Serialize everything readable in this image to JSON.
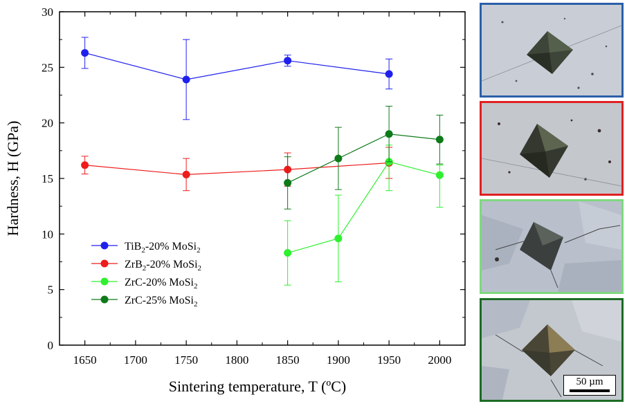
{
  "chart_data": {
    "type": "line",
    "xlabel": "Sintering temperature, T (ºC)",
    "ylabel": "Hardness, H (GPa)",
    "xlim": [
      1625,
      2025
    ],
    "ylim": [
      0,
      30
    ],
    "xticks": [
      1650,
      1700,
      1750,
      1800,
      1850,
      1900,
      1950,
      2000
    ],
    "yticks": [
      0,
      5,
      10,
      15,
      20,
      25,
      30
    ],
    "grid": false,
    "legend_position": "bottom-left",
    "series": [
      {
        "name_main": "TiB",
        "name_sub": "2",
        "name_mid": "-20% MoSi",
        "name_sub2": "2",
        "color": "#2020ee",
        "points": [
          {
            "x": 1650,
            "y": 26.3,
            "err_low": 1.4,
            "err_high": 1.4
          },
          {
            "x": 1750,
            "y": 23.9,
            "err_low": 3.6,
            "err_high": 3.6
          },
          {
            "x": 1850,
            "y": 25.6,
            "err_low": 0.5,
            "err_high": 0.5
          },
          {
            "x": 1950,
            "y": 24.4,
            "err_low": 1.35,
            "err_high": 1.35
          }
        ]
      },
      {
        "name_main": "ZrB",
        "name_sub": "2",
        "name_mid": "-20% MoSi",
        "name_sub2": "2",
        "color": "#ee1c1c",
        "points": [
          {
            "x": 1650,
            "y": 16.2,
            "err_low": 0.8,
            "err_high": 0.8
          },
          {
            "x": 1750,
            "y": 15.35,
            "err_low": 1.45,
            "err_high": 1.45
          },
          {
            "x": 1850,
            "y": 15.8,
            "err_low": 1.5,
            "err_high": 1.5
          },
          {
            "x": 1950,
            "y": 16.4,
            "err_low": 1.4,
            "err_high": 1.4
          }
        ]
      },
      {
        "name_main": "ZrC-20% MoSi",
        "name_sub": "2",
        "name_mid": "",
        "name_sub2": "",
        "color": "#2ef02e",
        "points": [
          {
            "x": 1850,
            "y": 8.3,
            "err_low": 2.9,
            "err_high": 2.9
          },
          {
            "x": 1900,
            "y": 9.6,
            "err_low": 3.9,
            "err_high": 3.9
          },
          {
            "x": 1950,
            "y": 16.5,
            "err_low": 2.6,
            "err_high": 1.5
          },
          {
            "x": 2000,
            "y": 15.3,
            "err_low": 2.9,
            "err_high": 0.9
          }
        ]
      },
      {
        "name_main": "ZrC-25% MoSi",
        "name_sub": "2",
        "name_mid": "",
        "name_sub2": "",
        "color": "#0e7a1a",
        "points": [
          {
            "x": 1850,
            "y": 14.6,
            "err_low": 2.35,
            "err_high": 2.35
          },
          {
            "x": 1900,
            "y": 16.8,
            "err_low": 2.8,
            "err_high": 2.8
          },
          {
            "x": 1950,
            "y": 19.0,
            "err_low": 2.5,
            "err_high": 2.5
          },
          {
            "x": 2000,
            "y": 18.5,
            "err_low": 2.2,
            "err_high": 2.2
          }
        ]
      }
    ]
  },
  "micrographs": [
    {
      "border_color": "#2b5fa8",
      "scale_label": ""
    },
    {
      "border_color": "#e02020",
      "scale_label": ""
    },
    {
      "border_color": "#7fd87f",
      "scale_label": ""
    },
    {
      "border_color": "#1c6b24",
      "scale_label": "50 µm"
    }
  ]
}
